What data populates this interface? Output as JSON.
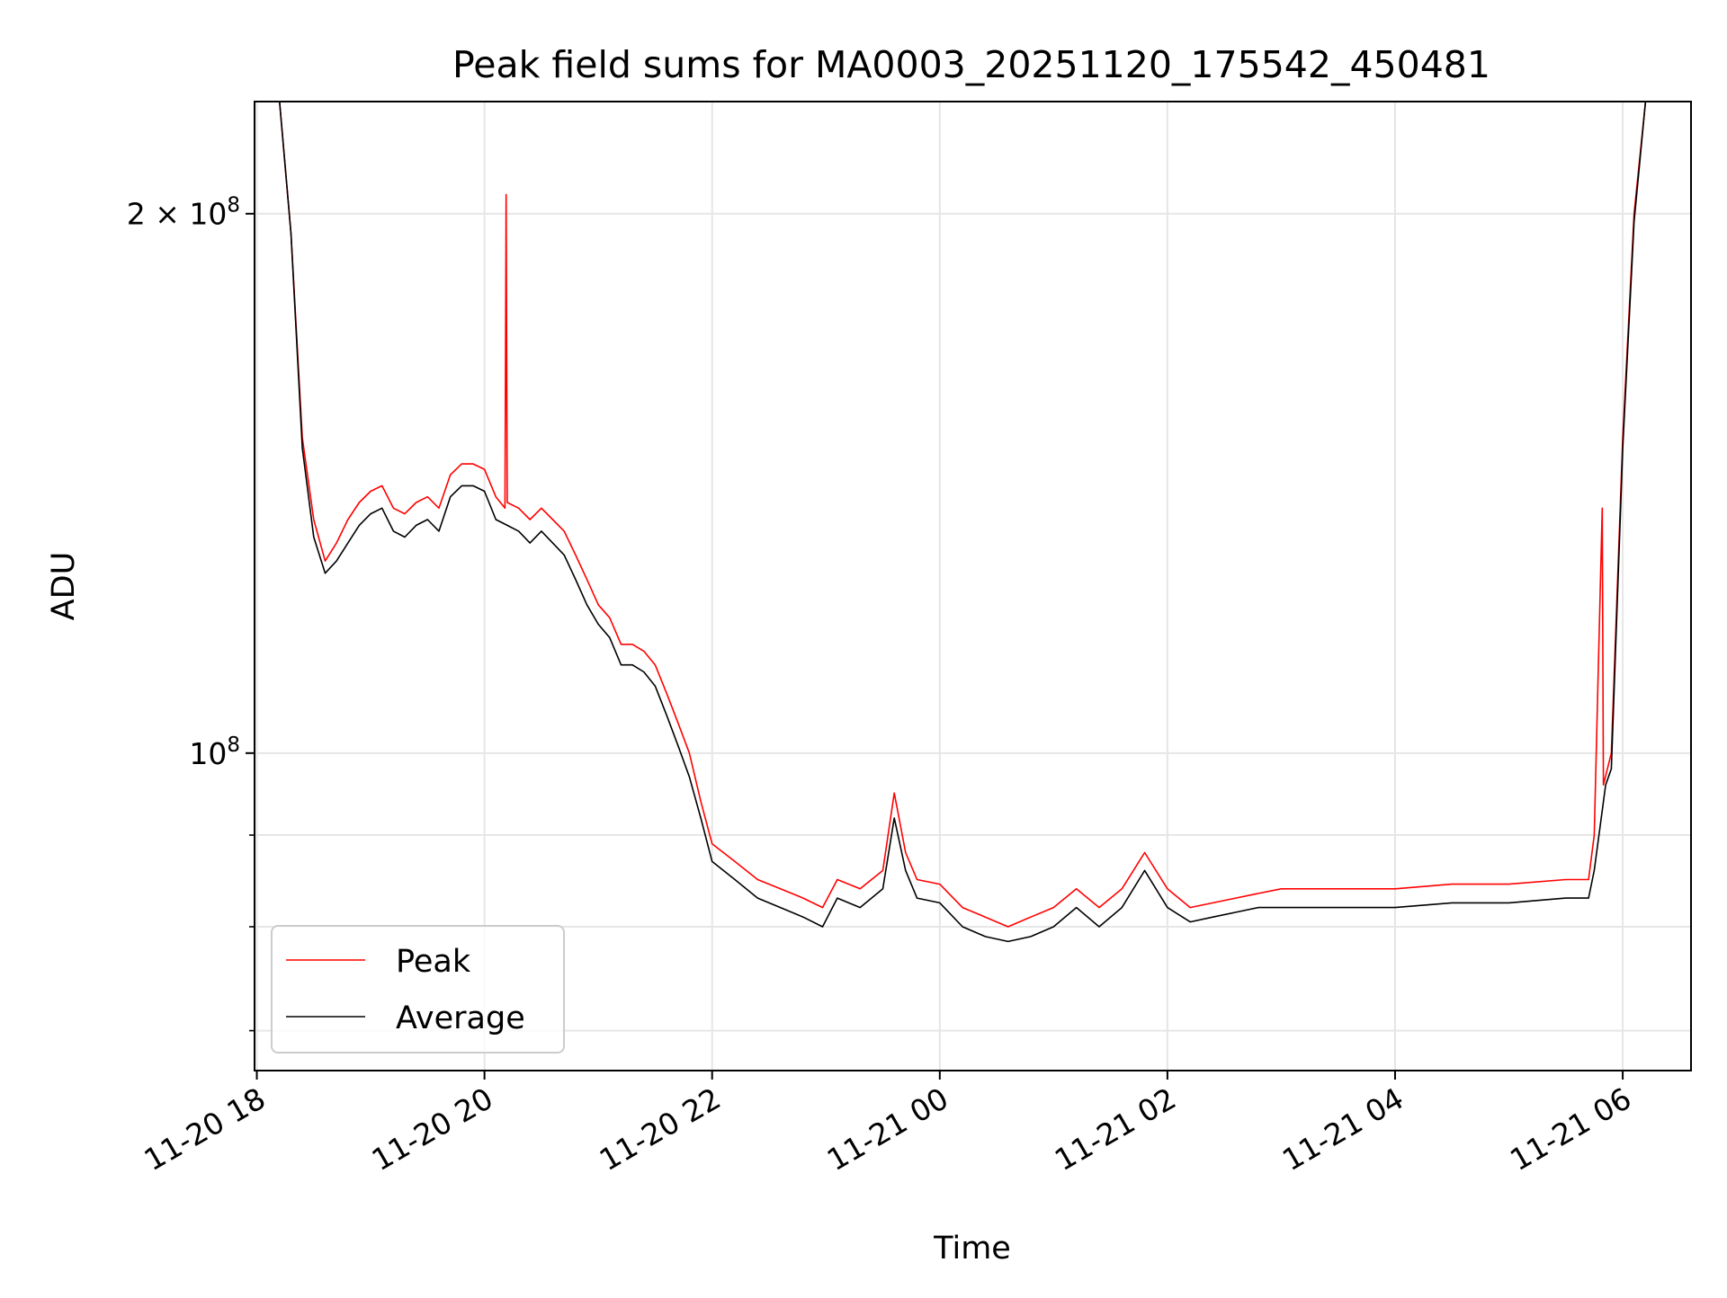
{
  "chart_data": {
    "type": "line",
    "title": "Peak field sums for MA0003_20251120_175542_450481",
    "xlabel": "Time",
    "ylabel": "ADU",
    "yscale": "log",
    "xlim_hours": [
      17.98,
      30.6
    ],
    "ylim": [
      66500000,
      231000000
    ],
    "grid": true,
    "legend_position": "lower-left",
    "x_ticks": [
      {
        "hour": 18,
        "label": "11-20 18"
      },
      {
        "hour": 20,
        "label": "11-20 20"
      },
      {
        "hour": 22,
        "label": "11-20 22"
      },
      {
        "hour": 24,
        "label": "11-21 00"
      },
      {
        "hour": 26,
        "label": "11-21 02"
      },
      {
        "hour": 28,
        "label": "11-21 04"
      },
      {
        "hour": 30,
        "label": "11-21 06"
      }
    ],
    "y_ticks_major": [
      {
        "value": 100000000,
        "base": "10",
        "exp": "8",
        "coef": ""
      },
      {
        "value": 200000000,
        "base": "10",
        "exp": "8",
        "coef": "2 × "
      }
    ],
    "y_ticks_minor": [
      70000000,
      80000000,
      90000000
    ],
    "series": [
      {
        "name": "Peak",
        "color": "#ff0000",
        "points": [
          [
            17.98,
            231000000
          ],
          [
            18.2,
            231000000
          ],
          [
            18.3,
            195000000
          ],
          [
            18.4,
            150000000
          ],
          [
            18.5,
            135000000
          ],
          [
            18.6,
            128000000
          ],
          [
            18.7,
            131000000
          ],
          [
            18.8,
            135000000
          ],
          [
            18.9,
            138000000
          ],
          [
            19.0,
            140000000
          ],
          [
            19.1,
            141000000
          ],
          [
            19.2,
            137000000
          ],
          [
            19.3,
            136000000
          ],
          [
            19.4,
            138000000
          ],
          [
            19.5,
            139000000
          ],
          [
            19.6,
            137000000
          ],
          [
            19.7,
            143000000
          ],
          [
            19.8,
            145000000
          ],
          [
            19.9,
            145000000
          ],
          [
            20.0,
            144000000
          ],
          [
            20.1,
            139000000
          ],
          [
            20.18,
            137000000
          ],
          [
            20.19,
            205000000
          ],
          [
            20.2,
            138000000
          ],
          [
            20.3,
            137000000
          ],
          [
            20.4,
            135000000
          ],
          [
            20.5,
            137000000
          ],
          [
            20.6,
            135000000
          ],
          [
            20.7,
            133000000
          ],
          [
            20.8,
            129000000
          ],
          [
            20.9,
            125000000
          ],
          [
            21.0,
            121000000
          ],
          [
            21.1,
            119000000
          ],
          [
            21.2,
            115000000
          ],
          [
            21.3,
            115000000
          ],
          [
            21.4,
            114000000
          ],
          [
            21.5,
            112000000
          ],
          [
            21.6,
            108000000
          ],
          [
            21.7,
            104000000
          ],
          [
            21.8,
            100000000
          ],
          [
            21.9,
            94000000
          ],
          [
            22.0,
            89000000
          ],
          [
            22.2,
            87000000
          ],
          [
            22.4,
            85000000
          ],
          [
            22.6,
            84000000
          ],
          [
            22.8,
            83000000
          ],
          [
            22.97,
            82000000
          ],
          [
            23.1,
            85000000
          ],
          [
            23.3,
            84000000
          ],
          [
            23.5,
            86000000
          ],
          [
            23.6,
            95000000
          ],
          [
            23.7,
            88000000
          ],
          [
            23.8,
            85000000
          ],
          [
            24.0,
            84500000
          ],
          [
            24.2,
            82000000
          ],
          [
            24.4,
            81000000
          ],
          [
            24.6,
            80000000
          ],
          [
            24.8,
            81000000
          ],
          [
            25.0,
            82000000
          ],
          [
            25.2,
            84000000
          ],
          [
            25.4,
            82000000
          ],
          [
            25.6,
            84000000
          ],
          [
            25.8,
            88000000
          ],
          [
            26.0,
            84000000
          ],
          [
            26.2,
            82000000
          ],
          [
            26.4,
            82500000
          ],
          [
            26.6,
            83000000
          ],
          [
            26.8,
            83500000
          ],
          [
            27.0,
            84000000
          ],
          [
            27.5,
            84000000
          ],
          [
            28.0,
            84000000
          ],
          [
            28.5,
            84500000
          ],
          [
            29.0,
            84500000
          ],
          [
            29.5,
            85000000
          ],
          [
            29.7,
            85000000
          ],
          [
            29.75,
            90000000
          ],
          [
            29.82,
            137000000
          ],
          [
            29.83,
            96000000
          ],
          [
            29.9,
            100000000
          ],
          [
            30.0,
            150000000
          ],
          [
            30.1,
            200000000
          ],
          [
            30.2,
            231000000
          ],
          [
            30.6,
            231000000
          ]
        ]
      },
      {
        "name": "Average",
        "color": "#000000",
        "points": [
          [
            17.98,
            231000000
          ],
          [
            18.2,
            231000000
          ],
          [
            18.3,
            195000000
          ],
          [
            18.4,
            148000000
          ],
          [
            18.5,
            132000000
          ],
          [
            18.6,
            126000000
          ],
          [
            18.7,
            128000000
          ],
          [
            18.8,
            131000000
          ],
          [
            18.9,
            134000000
          ],
          [
            19.0,
            136000000
          ],
          [
            19.1,
            137000000
          ],
          [
            19.2,
            133000000
          ],
          [
            19.3,
            132000000
          ],
          [
            19.4,
            134000000
          ],
          [
            19.5,
            135000000
          ],
          [
            19.6,
            133000000
          ],
          [
            19.7,
            139000000
          ],
          [
            19.8,
            141000000
          ],
          [
            19.9,
            141000000
          ],
          [
            20.0,
            140000000
          ],
          [
            20.1,
            135000000
          ],
          [
            20.2,
            134000000
          ],
          [
            20.3,
            133000000
          ],
          [
            20.4,
            131000000
          ],
          [
            20.5,
            133000000
          ],
          [
            20.6,
            131000000
          ],
          [
            20.7,
            129000000
          ],
          [
            20.8,
            125000000
          ],
          [
            20.9,
            121000000
          ],
          [
            21.0,
            118000000
          ],
          [
            21.1,
            116000000
          ],
          [
            21.2,
            112000000
          ],
          [
            21.3,
            112000000
          ],
          [
            21.4,
            111000000
          ],
          [
            21.5,
            109000000
          ],
          [
            21.6,
            105000000
          ],
          [
            21.7,
            101000000
          ],
          [
            21.8,
            97000000
          ],
          [
            21.9,
            92000000
          ],
          [
            22.0,
            87000000
          ],
          [
            22.2,
            85000000
          ],
          [
            22.4,
            83000000
          ],
          [
            22.6,
            82000000
          ],
          [
            22.8,
            81000000
          ],
          [
            22.97,
            80000000
          ],
          [
            23.1,
            83000000
          ],
          [
            23.3,
            82000000
          ],
          [
            23.5,
            84000000
          ],
          [
            23.6,
            92000000
          ],
          [
            23.7,
            86000000
          ],
          [
            23.8,
            83000000
          ],
          [
            24.0,
            82500000
          ],
          [
            24.2,
            80000000
          ],
          [
            24.4,
            79000000
          ],
          [
            24.6,
            78500000
          ],
          [
            24.8,
            79000000
          ],
          [
            25.0,
            80000000
          ],
          [
            25.2,
            82000000
          ],
          [
            25.4,
            80000000
          ],
          [
            25.6,
            82000000
          ],
          [
            25.8,
            86000000
          ],
          [
            26.0,
            82000000
          ],
          [
            26.2,
            80500000
          ],
          [
            26.4,
            81000000
          ],
          [
            26.6,
            81500000
          ],
          [
            26.8,
            82000000
          ],
          [
            27.0,
            82000000
          ],
          [
            27.5,
            82000000
          ],
          [
            28.0,
            82000000
          ],
          [
            28.5,
            82500000
          ],
          [
            29.0,
            82500000
          ],
          [
            29.5,
            83000000
          ],
          [
            29.7,
            83000000
          ],
          [
            29.75,
            86000000
          ],
          [
            29.85,
            96000000
          ],
          [
            29.9,
            98000000
          ],
          [
            30.0,
            148000000
          ],
          [
            30.1,
            198000000
          ],
          [
            30.2,
            231000000
          ],
          [
            30.6,
            231000000
          ]
        ]
      }
    ]
  }
}
